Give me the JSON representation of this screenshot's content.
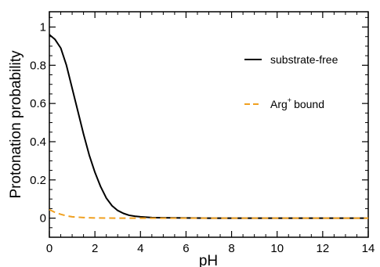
{
  "chart_data": {
    "type": "line",
    "xlabel": "pH",
    "ylabel": "Protonation probability",
    "xlim": [
      0,
      14
    ],
    "ylim": [
      -0.1,
      1.08
    ],
    "x_ticks": [
      "0",
      "2",
      "4",
      "6",
      "8",
      "10",
      "12",
      "14"
    ],
    "y_ticks": [
      "0",
      "0.2",
      "0.4",
      "0.6",
      "0.8",
      "1"
    ],
    "grid": false,
    "legend_position": "top-right",
    "series": [
      {
        "name": "substrate-free",
        "color": "#000000",
        "dash": "solid",
        "x": [
          0,
          0.25,
          0.5,
          0.75,
          1.0,
          1.25,
          1.5,
          1.75,
          2.0,
          2.25,
          2.5,
          2.75,
          3.0,
          3.25,
          3.5,
          3.75,
          4.0,
          4.5,
          5.0,
          6.0,
          7.0,
          8.0,
          10.0,
          12.0,
          14.0
        ],
        "y": [
          0.96,
          0.935,
          0.89,
          0.8,
          0.68,
          0.56,
          0.44,
          0.33,
          0.24,
          0.165,
          0.105,
          0.065,
          0.04,
          0.025,
          0.015,
          0.01,
          0.007,
          0.003,
          0.002,
          0.001,
          0.0,
          0.0,
          0.0,
          0.0,
          0.0
        ]
      },
      {
        "name_base": "Arg",
        "name_sup": "+",
        "name_rest": "bound",
        "color": "#F0A020",
        "dash": "dashed",
        "x": [
          0,
          0.25,
          0.5,
          0.75,
          1.0,
          1.5,
          2.0,
          3.0,
          4.0,
          6.0,
          8.0,
          10.0,
          12.0,
          14.0
        ],
        "y": [
          0.045,
          0.03,
          0.02,
          0.012,
          0.007,
          0.003,
          0.001,
          0.0,
          0.0,
          0.0,
          0.0,
          0.0,
          0.0,
          0.0
        ]
      }
    ]
  }
}
